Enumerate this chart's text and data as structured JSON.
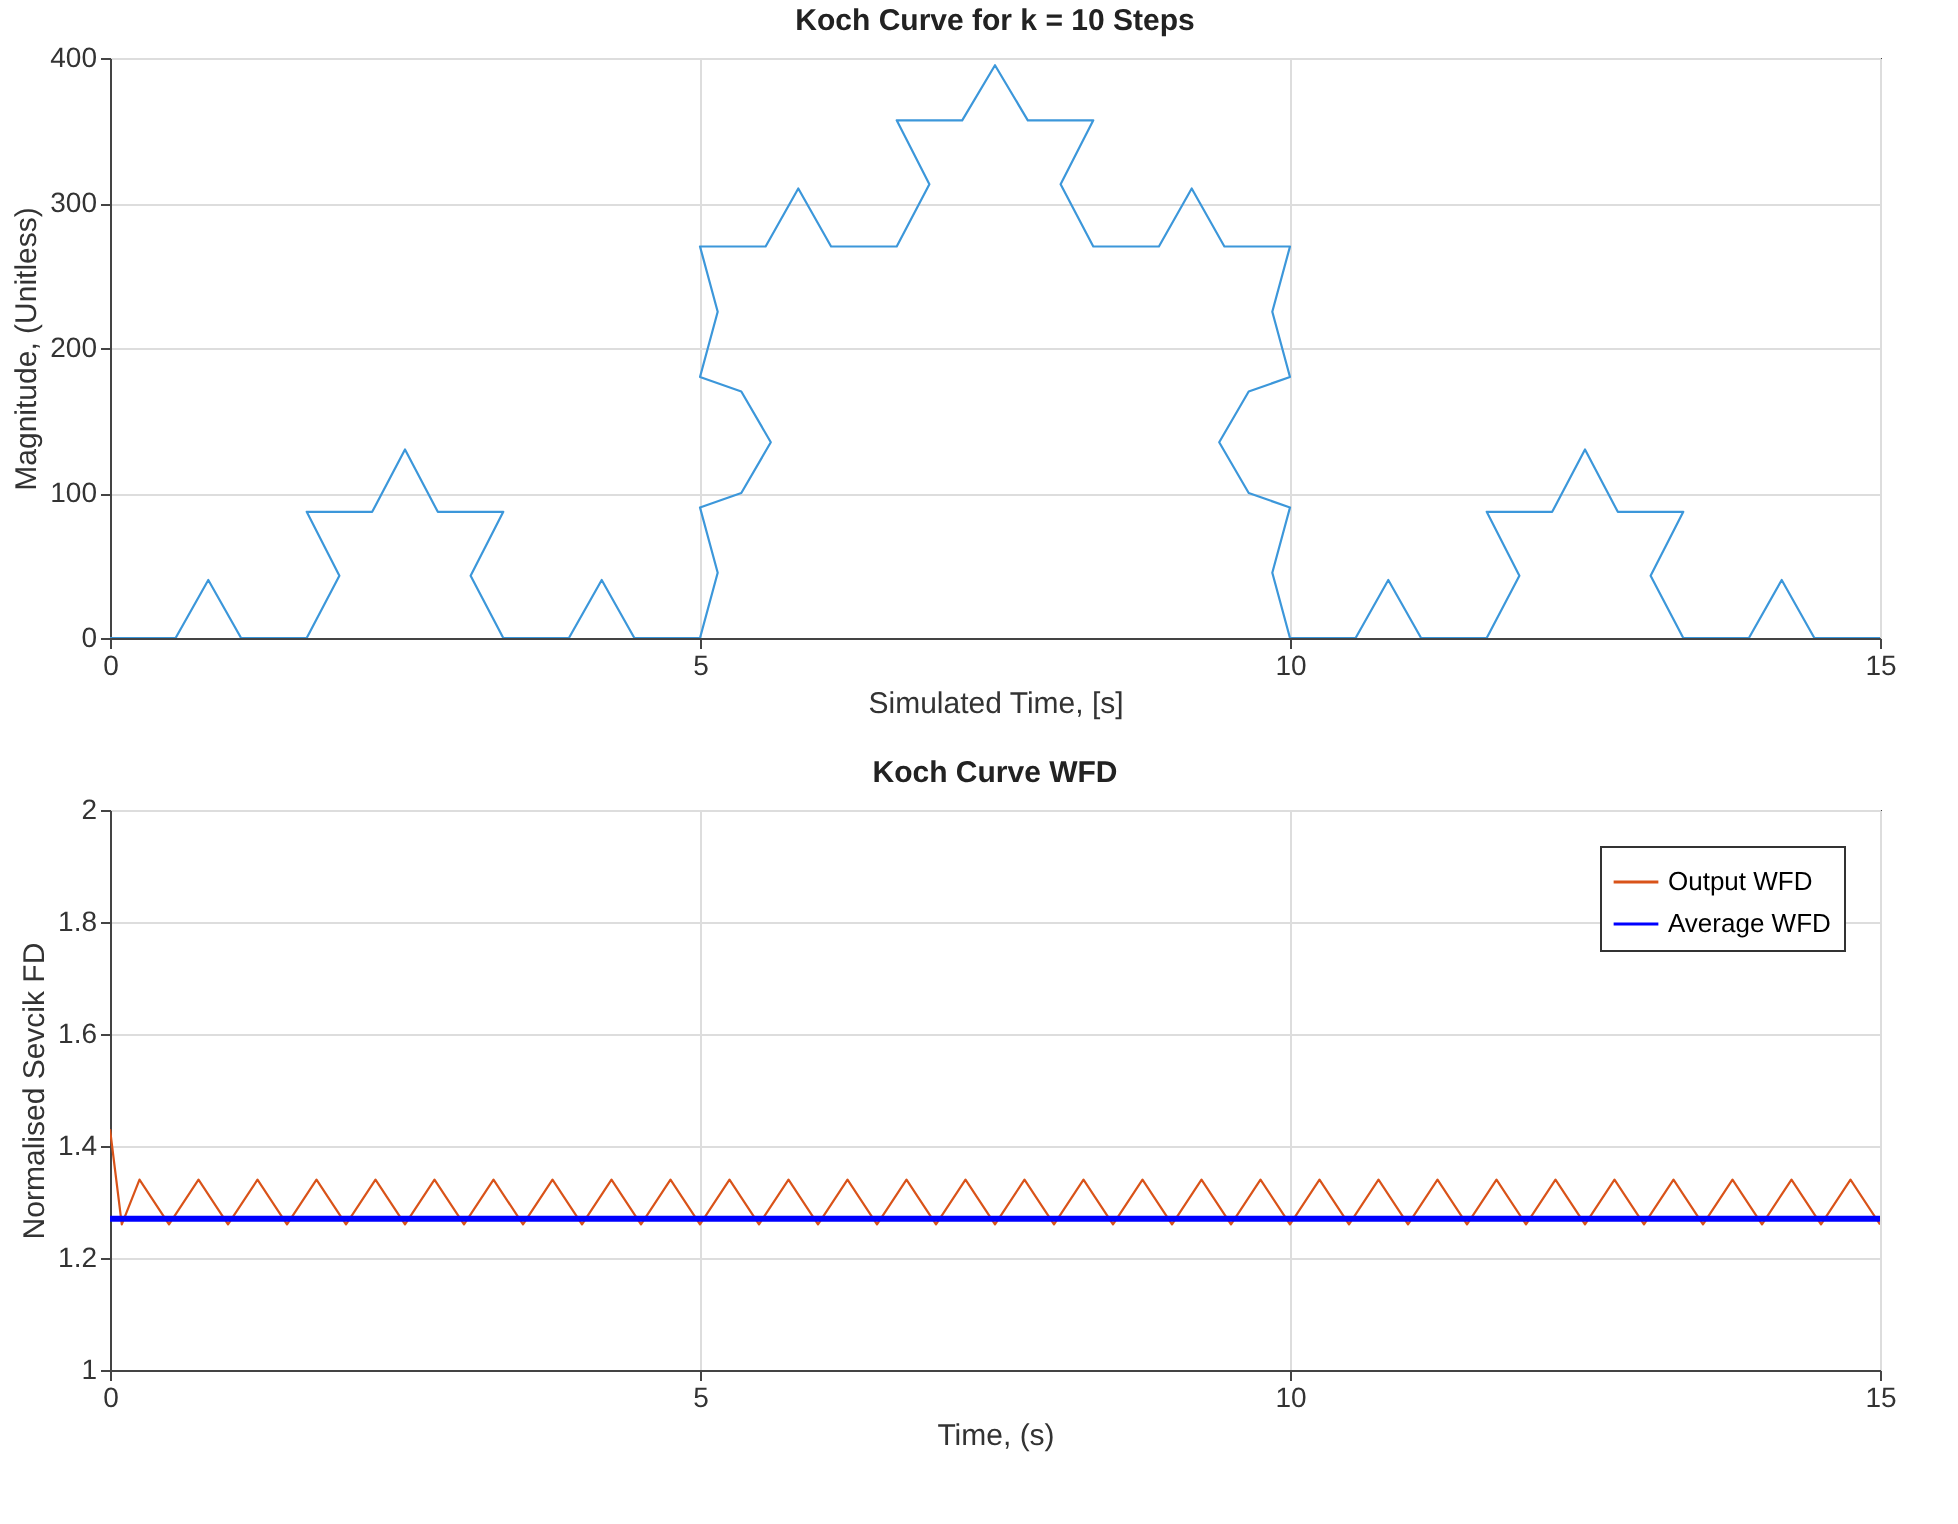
{
  "chart_data": [
    {
      "type": "line",
      "title": "Koch Curve for k = 10 Steps",
      "xlabel": "Simulated Time, [s]",
      "ylabel": "Magnitude, (Unitless)",
      "xlim": [
        0,
        15
      ],
      "xticks": [
        0,
        5,
        10,
        15
      ],
      "ylim": [
        0,
        400
      ],
      "yticks": [
        0,
        100,
        200,
        300,
        400
      ],
      "grid": true,
      "series": [
        {
          "color": "#3c97da",
          "x": [
            0,
            0.556,
            0.833,
            1.111,
            1.667,
            1.944,
            1.667,
            2.222,
            2.5,
            2.778,
            3.333,
            3.056,
            3.333,
            3.889,
            4.167,
            4.444,
            5,
            5.15,
            5,
            5.35,
            5.6,
            5.35,
            5,
            5.15,
            5,
            5.556,
            5.833,
            6.111,
            6.667,
            6.944,
            6.667,
            7.222,
            7.5,
            7.778,
            8.333,
            8.056,
            8.333,
            8.889,
            9.167,
            9.444,
            10,
            9.85,
            10,
            9.65,
            9.4,
            9.65,
            10,
            9.85,
            10,
            10.556,
            10.833,
            11.111,
            11.667,
            11.944,
            11.667,
            12.222,
            12.5,
            12.778,
            13.333,
            13.056,
            13.333,
            13.889,
            14.167,
            14.444,
            15
          ],
          "values": [
            0,
            0,
            40,
            0,
            0,
            43,
            87,
            87,
            130,
            87,
            87,
            43,
            0,
            0,
            40,
            0,
            0,
            45,
            90,
            100,
            135,
            170,
            180,
            225,
            270,
            270,
            310,
            270,
            270,
            313,
            357,
            357,
            395,
            357,
            357,
            313,
            270,
            270,
            310,
            270,
            270,
            225,
            180,
            170,
            135,
            100,
            90,
            45,
            0,
            0,
            40,
            0,
            0,
            43,
            87,
            87,
            130,
            87,
            87,
            43,
            0,
            0,
            40,
            0,
            0
          ]
        }
      ]
    },
    {
      "type": "line",
      "title": "Koch Curve WFD",
      "xlabel": "Time, (s)",
      "ylabel": "Normalised Sevcik FD",
      "xlim": [
        0,
        15
      ],
      "xticks": [
        0,
        5,
        10,
        15
      ],
      "ylim": [
        1,
        2
      ],
      "yticks": [
        1,
        1.2,
        1.4,
        1.6,
        1.8,
        2
      ],
      "grid": true,
      "legend": "top right",
      "series": [
        {
          "name": "Output WFD",
          "color": "#d95319",
          "x": [
            0,
            0.1,
            0.25,
            0.5,
            0.75,
            1,
            1.25,
            1.5,
            1.75,
            2,
            2.25,
            2.5,
            2.75,
            3,
            3.25,
            3.5,
            3.75,
            4,
            4.25,
            4.5,
            4.75,
            5,
            5.25,
            5.5,
            5.75,
            6,
            6.25,
            6.5,
            6.75,
            7,
            7.25,
            7.5,
            7.75,
            8,
            8.25,
            8.5,
            8.75,
            9,
            9.25,
            9.5,
            9.75,
            10,
            10.25,
            10.5,
            10.75,
            11,
            11.25,
            11.5,
            11.75,
            12,
            12.25,
            12.5,
            12.75,
            13,
            13.25,
            13.5,
            13.75,
            14,
            14.25,
            14.5,
            14.75,
            15
          ],
          "values": [
            1.43,
            1.26,
            1.34,
            1.26,
            1.34,
            1.26,
            1.34,
            1.26,
            1.34,
            1.26,
            1.34,
            1.26,
            1.34,
            1.26,
            1.34,
            1.26,
            1.34,
            1.26,
            1.34,
            1.26,
            1.34,
            1.26,
            1.34,
            1.26,
            1.34,
            1.26,
            1.34,
            1.26,
            1.34,
            1.26,
            1.34,
            1.26,
            1.34,
            1.26,
            1.34,
            1.26,
            1.34,
            1.26,
            1.34,
            1.26,
            1.34,
            1.26,
            1.34,
            1.26,
            1.34,
            1.26,
            1.34,
            1.26,
            1.34,
            1.26,
            1.34,
            1.26,
            1.34,
            1.26,
            1.34,
            1.26,
            1.34,
            1.26,
            1.34,
            1.26,
            1.34,
            1.26
          ]
        },
        {
          "name": "Average WFD",
          "color": "#0000ff",
          "x": [
            0,
            15
          ],
          "values": [
            1.27,
            1.27
          ]
        }
      ]
    }
  ]
}
